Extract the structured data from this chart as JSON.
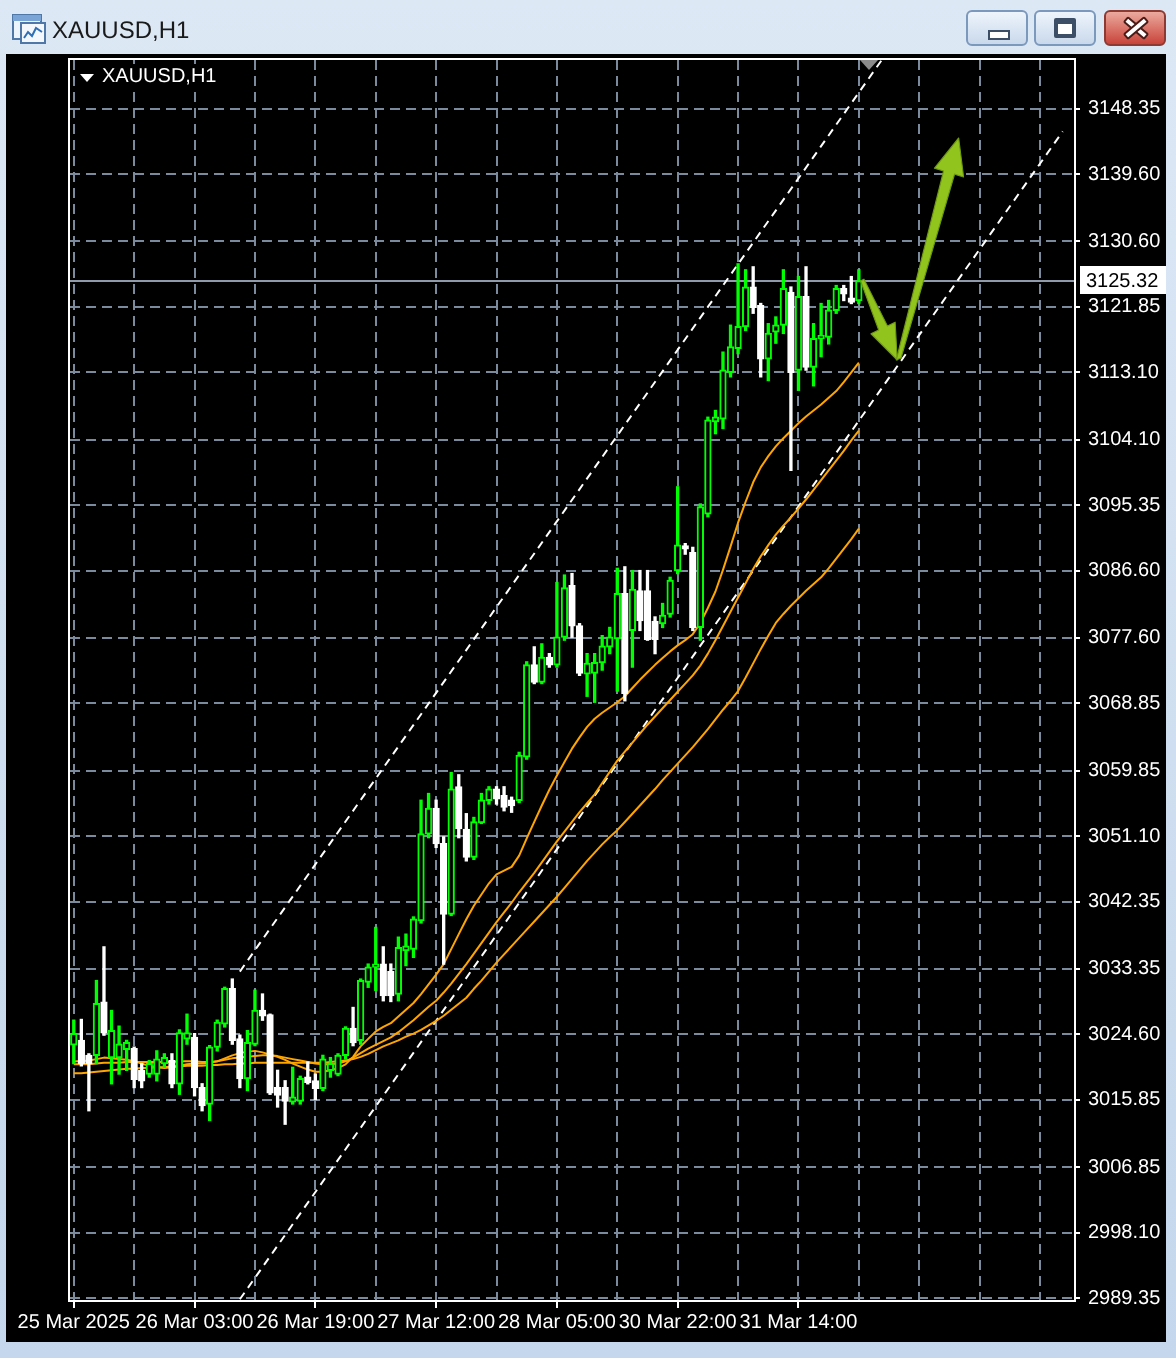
{
  "chart_data": {
    "type": "candlestick",
    "title": "XAUUSD,H1",
    "subtitle": "XAUUSD,H1",
    "categories": [
      "25 Mar 2025",
      null,
      null,
      null,
      null,
      null,
      null,
      null,
      null,
      null,
      null,
      null,
      null,
      null,
      null,
      null,
      "26 Mar 03:00",
      null,
      null,
      null,
      null,
      null,
      null,
      null,
      null,
      null,
      null,
      null,
      null,
      null,
      null,
      null,
      "26 Mar 19:00",
      null,
      null,
      null,
      null,
      null,
      null,
      null,
      null,
      null,
      null,
      null,
      null,
      null,
      null,
      null,
      "27 Mar 12:00",
      null,
      null,
      null,
      null,
      null,
      null,
      null,
      null,
      null,
      null,
      null,
      null,
      null,
      null,
      null,
      "28 Mar 05:00",
      null,
      null,
      null,
      null,
      null,
      null,
      null,
      null,
      null,
      null,
      null,
      null,
      null,
      null,
      null,
      "30 Mar 22:00",
      null,
      null,
      null,
      null,
      null,
      null,
      null,
      null,
      null,
      null,
      null,
      null,
      null,
      null,
      null,
      "31 Mar 14:00",
      null,
      null,
      null,
      null,
      null,
      null,
      null,
      null,
      null,
      null,
      null,
      null,
      null,
      null,
      null,
      null,
      null,
      null,
      null,
      null,
      null,
      null,
      null,
      null,
      null,
      null,
      null,
      null,
      null,
      null,
      null,
      null,
      null,
      null,
      null,
      null
    ],
    "ohlc": [
      [
        3023.2,
        3026.5,
        3020.7,
        3024.7
      ],
      [
        3023.8,
        3026.6,
        3020.4,
        3020.7
      ],
      [
        3021.8,
        3022.0,
        3014.4,
        3020.7
      ],
      [
        3021.8,
        3031.8,
        3020.7,
        3028.7
      ],
      [
        3028.9,
        3036.3,
        3024.5,
        3024.8
      ],
      [
        3021.5,
        3027.8,
        3018.0,
        3025.1
      ],
      [
        3021.5,
        3025.7,
        3019.3,
        3023.3
      ],
      [
        3022.6,
        3023.8,
        3019.8,
        3023.5
      ],
      [
        3022.7,
        3022.9,
        3017.5,
        3018.6
      ],
      [
        3019.8,
        3020.7,
        3017.5,
        3018.4
      ],
      [
        3019.3,
        3021.1,
        3018.9,
        3020.7
      ],
      [
        3019.3,
        3022.4,
        3018.4,
        3021.3
      ],
      [
        3020.7,
        3022.0,
        3020.2,
        3021.5
      ],
      [
        3021.1,
        3022.0,
        3017.5,
        3018.0
      ],
      [
        3018.0,
        3025.2,
        3016.6,
        3024.8
      ],
      [
        3024.0,
        3027.3,
        3023.3,
        3024.8
      ],
      [
        3024.2,
        3024.7,
        3016.4,
        3017.5
      ],
      [
        3017.5,
        3018.0,
        3014.4,
        3015.1
      ],
      [
        3015.3,
        3023.1,
        3013.1,
        3022.9
      ],
      [
        3022.9,
        3026.5,
        3022.4,
        3026.2
      ],
      [
        3026.0,
        3030.9,
        3025.6,
        3030.7
      ],
      [
        3030.7,
        3032.0,
        3023.3,
        3023.8
      ],
      [
        3024.0,
        3024.5,
        3017.5,
        3018.7
      ],
      [
        3018.7,
        3025.1,
        3017.1,
        3023.5
      ],
      [
        3023.3,
        3030.5,
        3023.1,
        3027.8
      ],
      [
        3027.8,
        3030.0,
        3026.5,
        3027.1
      ],
      [
        3027.2,
        3027.3,
        3016.6,
        3016.8
      ],
      [
        3017.5,
        3019.8,
        3014.9,
        3016.5
      ],
      [
        3017.5,
        3018.4,
        3012.6,
        3015.7
      ],
      [
        3015.6,
        3020.2,
        3015.3,
        3016.2
      ],
      [
        3015.7,
        3019.0,
        3015.3,
        3018.7
      ],
      [
        3018.9,
        3020.9,
        3018.0,
        3018.2
      ],
      [
        3018.4,
        3019.3,
        3015.9,
        3017.4
      ],
      [
        3017.4,
        3021.8,
        3017.1,
        3021.3
      ],
      [
        3019.8,
        3021.5,
        3018.9,
        3020.7
      ],
      [
        3019.3,
        3022.0,
        3019.1,
        3021.8
      ],
      [
        3021.8,
        3025.6,
        3021.3,
        3025.4
      ],
      [
        3025.4,
        3028.2,
        3023.1,
        3023.5
      ],
      [
        3023.8,
        3032.0,
        3023.3,
        3031.8
      ],
      [
        3031.6,
        3034.0,
        3030.9,
        3033.6
      ],
      [
        3033.6,
        3038.9,
        3030.5,
        3034.0
      ],
      [
        3034.0,
        3036.3,
        3029.1,
        3029.8
      ],
      [
        3033.0,
        3034.0,
        3029.0,
        3029.8
      ],
      [
        3030.0,
        3037.6,
        3029.1,
        3036.2
      ],
      [
        3035.8,
        3038.0,
        3033.8,
        3036.4
      ],
      [
        3036.0,
        3040.3,
        3034.9,
        3040.0
      ],
      [
        3039.8,
        3055.9,
        3039.5,
        3051.4
      ],
      [
        3051.4,
        3056.8,
        3050.9,
        3054.8
      ],
      [
        3054.8,
        3055.9,
        3049.6,
        3050.1
      ],
      [
        3050.1,
        3051.0,
        3034.0,
        3040.7
      ],
      [
        3040.7,
        3059.6,
        3040.5,
        3057.4
      ],
      [
        3057.7,
        3059.3,
        3050.9,
        3052.1
      ],
      [
        3052.0,
        3054.1,
        3047.8,
        3048.3
      ],
      [
        3048.3,
        3053.6,
        3048.0,
        3053.0
      ],
      [
        3052.9,
        3056.8,
        3052.8,
        3055.9
      ],
      [
        3055.9,
        3057.7,
        3055.4,
        3057.4
      ],
      [
        3057.4,
        3057.7,
        3055.4,
        3056.1
      ],
      [
        3056.5,
        3057.7,
        3054.5,
        3055.0
      ],
      [
        3055.9,
        3056.3,
        3054.3,
        3055.2
      ],
      [
        3055.9,
        3062.3,
        3055.6,
        3061.9
      ],
      [
        3061.7,
        3074.4,
        3061.4,
        3074.0
      ],
      [
        3074.0,
        3076.4,
        3071.5,
        3071.7
      ],
      [
        3071.7,
        3076.8,
        3071.5,
        3075.0
      ],
      [
        3075.0,
        3075.5,
        3073.7,
        3074.0
      ],
      [
        3074.0,
        3085.0,
        3073.7,
        3077.7
      ],
      [
        3077.7,
        3086.0,
        3077.3,
        3084.3
      ],
      [
        3084.6,
        3086.2,
        3077.7,
        3079.2
      ],
      [
        3079.2,
        3079.5,
        3072.6,
        3072.9
      ],
      [
        3072.8,
        3075.5,
        3069.8,
        3074.2
      ],
      [
        3072.9,
        3075.5,
        3069.0,
        3074.3
      ],
      [
        3074.3,
        3077.9,
        3073.3,
        3076.5
      ],
      [
        3076.4,
        3079.0,
        3075.5,
        3077.7
      ],
      [
        3077.5,
        3086.9,
        3070.5,
        3083.5
      ],
      [
        3083.5,
        3087.1,
        3069.2,
        3070.2
      ],
      [
        3078.6,
        3086.6,
        3073.7,
        3084.1
      ],
      [
        3083.9,
        3086.6,
        3078.6,
        3079.9
      ],
      [
        3083.9,
        3086.6,
        3077.3,
        3077.4
      ],
      [
        3079.8,
        3080.4,
        3075.5,
        3077.4
      ],
      [
        3079.5,
        3082.2,
        3079.0,
        3080.6
      ],
      [
        3080.8,
        3085.7,
        3080.4,
        3085.3
      ],
      [
        3086.6,
        3097.8,
        3086.2,
        3090.0
      ],
      [
        3089.9,
        3090.2,
        3088.8,
        3089.5
      ],
      [
        3089.0,
        3089.7,
        3078.6,
        3079.0
      ],
      [
        3079.0,
        3095.5,
        3077.3,
        3095.1
      ],
      [
        3094.2,
        3107.1,
        3093.8,
        3106.7
      ],
      [
        3106.5,
        3108.0,
        3104.9,
        3107.1
      ],
      [
        3106.9,
        3115.8,
        3105.6,
        3113.4
      ],
      [
        3113.1,
        3119.4,
        3112.5,
        3116.5
      ],
      [
        3116.3,
        3127.6,
        3115.6,
        3119.2
      ],
      [
        3119.2,
        3126.8,
        3118.7,
        3124.5
      ],
      [
        3124.5,
        3127.2,
        3121.0,
        3121.8
      ],
      [
        3122.0,
        3122.3,
        3112.5,
        3114.9
      ],
      [
        3114.9,
        3119.6,
        3112.0,
        3118.3
      ],
      [
        3118.5,
        3120.5,
        3117.0,
        3119.4
      ],
      [
        3119.4,
        3126.8,
        3118.3,
        3124.3
      ],
      [
        3123.8,
        3124.5,
        3100.0,
        3113.1
      ],
      [
        3113.4,
        3125.9,
        3110.7,
        3123.2
      ],
      [
        3123.2,
        3127.2,
        3113.4,
        3113.8
      ],
      [
        3113.8,
        3119.6,
        3111.3,
        3117.6
      ],
      [
        3117.6,
        3122.3,
        3115.2,
        3118.0
      ],
      [
        3117.8,
        3122.7,
        3116.9,
        3121.4
      ],
      [
        3121.4,
        3124.7,
        3121.0,
        3124.3
      ],
      [
        3124.3,
        3124.7,
        3122.7,
        3123.6
      ],
      [
        3123.0,
        3125.9,
        3122.3,
        3122.5
      ],
      [
        3122.7,
        3126.8,
        3122.3,
        3125.32
      ],
      null,
      null,
      null,
      null,
      null,
      null,
      null,
      null,
      null,
      null,
      null,
      null,
      null,
      null,
      null,
      null,
      null,
      null,
      null,
      null,
      null,
      null,
      null,
      null,
      null,
      null,
      null,
      null
    ],
    "colors": [
      "#00ff00",
      "#ffffff",
      "#ffffff",
      "#00ff00",
      "#ffffff",
      "#00ff00",
      "#00ff00",
      "#00ff00",
      "#ffffff",
      "#ffffff",
      "#00ff00",
      "#00ff00",
      "#00ff00",
      "#ffffff",
      "#00ff00",
      "#00ff00",
      "#ffffff",
      "#ffffff",
      "#00ff00",
      "#00ff00",
      "#00ff00",
      "#ffffff",
      "#ffffff",
      "#00ff00",
      "#00ff00",
      "#ffffff",
      "#ffffff",
      "#ffffff",
      "#ffffff",
      "#00ff00",
      "#00ff00",
      "#ffffff",
      "#ffffff",
      "#00ff00",
      "#00ff00",
      "#00ff00",
      "#00ff00",
      "#ffffff",
      "#00ff00",
      "#00ff00",
      "#00ff00",
      "#ffffff",
      "#ffffff",
      "#00ff00",
      "#00ff00",
      "#00ff00",
      "#00ff00",
      "#00ff00",
      "#ffffff",
      "#ffffff",
      "#00ff00",
      "#ffffff",
      "#ffffff",
      "#00ff00",
      "#00ff00",
      "#00ff00",
      "#ffffff",
      "#ffffff",
      "#ffffff",
      "#00ff00",
      "#00ff00",
      "#ffffff",
      "#00ff00",
      "#ffffff",
      "#00ff00",
      "#00ff00",
      "#ffffff",
      "#ffffff",
      "#00ff00",
      "#00ff00",
      "#00ff00",
      "#00ff00",
      "#00ff00",
      "#ffffff",
      "#00ff00",
      "#ffffff",
      "#ffffff",
      "#ffffff",
      "#00ff00",
      "#00ff00",
      "#00ff00",
      "#ffffff",
      "#ffffff",
      "#00ff00",
      "#00ff00",
      "#00ff00",
      "#00ff00",
      "#00ff00",
      "#00ff00",
      "#00ff00",
      "#ffffff",
      "#ffffff",
      "#00ff00",
      "#00ff00",
      "#00ff00",
      "#ffffff",
      "#00ff00",
      "#ffffff",
      "#00ff00",
      "#00ff00",
      "#00ff00",
      "#00ff00",
      "#ffffff",
      "#ffffff",
      "#00ff00",
      null,
      null,
      null,
      null,
      null,
      null,
      null,
      null,
      null,
      null,
      null,
      null,
      null,
      null,
      null,
      null,
      null,
      null,
      null,
      null,
      null,
      null,
      null,
      null,
      null,
      null,
      null,
      null
    ],
    "series": [
      {
        "type": "line",
        "color": "#ffa500",
        "values": [
          3021.0,
          3021.0,
          3021.1,
          3021.3,
          3021.5,
          3021.4,
          3021.3,
          3021.2,
          3021.0,
          3020.7,
          3020.4,
          3020.2,
          3020.1,
          3020.2,
          3020.4,
          3020.6,
          3020.7,
          3020.7,
          3020.8,
          3021.0,
          3021.4,
          3021.8,
          3022.1,
          3022.3,
          3022.4,
          3022.2,
          3021.9,
          3021.6,
          3021.2,
          3020.7,
          3020.3,
          3019.9,
          3019.6,
          3019.6,
          3019.8,
          3020.1,
          3020.6,
          3021.6,
          3023.0,
          3024.0,
          3025.0,
          3025.6,
          3026.1,
          3027.0,
          3027.9,
          3028.8,
          3030.0,
          3031.3,
          3032.6,
          3034.0,
          3036.0,
          3038.0,
          3040.0,
          3041.8,
          3043.3,
          3044.8,
          3046.0,
          3046.5,
          3047.0,
          3048.5,
          3050.8,
          3053.0,
          3055.2,
          3057.3,
          3059.2,
          3061.0,
          3062.8,
          3064.3,
          3065.7,
          3066.8,
          3067.6,
          3068.3,
          3069.0,
          3069.8,
          3070.9,
          3072.0,
          3073.0,
          3074.0,
          3074.9,
          3075.8,
          3076.6,
          3077.3,
          3078.1,
          3079.6,
          3081.6,
          3083.8,
          3086.7,
          3089.8,
          3093.0,
          3095.8,
          3098.4,
          3100.4,
          3101.9,
          3103.2,
          3104.3,
          3105.3,
          3106.3,
          3107.2,
          3108.0,
          3108.8,
          3109.7,
          3110.6,
          3111.8,
          3113.1,
          3114.4,
          null,
          null,
          null,
          null,
          null,
          null,
          null,
          null,
          null,
          null,
          null,
          null,
          null,
          null,
          null,
          null,
          null,
          null,
          null,
          null,
          null,
          null,
          null,
          null,
          null,
          null,
          null,
          null
        ]
      },
      {
        "type": "line",
        "color": "#ffa500",
        "values": [
          3020.6,
          3020.6,
          3020.6,
          3020.7,
          3020.8,
          3020.8,
          3020.8,
          3020.9,
          3020.9,
          3020.9,
          3020.9,
          3020.9,
          3020.9,
          3020.9,
          3021.0,
          3021.0,
          3021.0,
          3020.9,
          3020.9,
          3021.0,
          3021.2,
          3021.4,
          3021.5,
          3021.6,
          3021.7,
          3021.8,
          3021.8,
          3021.7,
          3021.5,
          3021.3,
          3021.1,
          3020.9,
          3020.7,
          3020.6,
          3020.6,
          3020.7,
          3021.0,
          3021.5,
          3022.1,
          3022.7,
          3023.2,
          3023.7,
          3024.2,
          3024.9,
          3025.7,
          3026.5,
          3027.4,
          3028.3,
          3029.1,
          3030.2,
          3031.4,
          3032.7,
          3034.0,
          3035.4,
          3036.8,
          3038.2,
          3039.6,
          3040.9,
          3042.2,
          3043.6,
          3044.9,
          3046.2,
          3047.6,
          3049.0,
          3050.4,
          3051.7,
          3053.0,
          3054.3,
          3055.5,
          3056.7,
          3058.2,
          3059.7,
          3061.2,
          3062.4,
          3063.6,
          3064.8,
          3066.0,
          3067.1,
          3068.2,
          3069.3,
          3070.4,
          3071.5,
          3072.6,
          3073.9,
          3075.5,
          3077.3,
          3079.2,
          3081.1,
          3083.0,
          3084.9,
          3086.8,
          3088.5,
          3090.0,
          3091.4,
          3092.6,
          3093.7,
          3094.9,
          3096.1,
          3097.4,
          3098.7,
          3100.0,
          3101.3,
          3102.6,
          3104.0,
          3105.3,
          null,
          null,
          null,
          null,
          null,
          null,
          null,
          null,
          null,
          null,
          null,
          null,
          null,
          null,
          null,
          null,
          null,
          null,
          null,
          null,
          null,
          null,
          null,
          null,
          null,
          null,
          null,
          null
        ]
      },
      {
        "type": "line",
        "color": "#ffa500",
        "values": [
          3019.4,
          3019.4,
          3019.5,
          3019.6,
          3019.7,
          3019.8,
          3019.9,
          3020.0,
          3020.0,
          3020.1,
          3020.1,
          3020.2,
          3020.2,
          3020.3,
          3020.3,
          3020.4,
          3020.4,
          3020.4,
          3020.5,
          3020.5,
          3020.6,
          3020.6,
          3020.7,
          3020.7,
          3020.8,
          3020.8,
          3020.8,
          3020.8,
          3020.8,
          3020.8,
          3020.8,
          3020.8,
          3020.8,
          3020.8,
          3020.9,
          3021.0,
          3021.1,
          3021.3,
          3021.6,
          3022.0,
          3022.5,
          3023.0,
          3023.4,
          3023.8,
          3024.3,
          3024.7,
          3025.2,
          3025.8,
          3026.4,
          3027.1,
          3027.9,
          3028.7,
          3029.5,
          3030.7,
          3031.8,
          3033.0,
          3034.2,
          3035.3,
          3036.4,
          3037.5,
          3038.6,
          3039.7,
          3040.8,
          3041.9,
          3043.0,
          3044.2,
          3045.4,
          3046.6,
          3047.8,
          3048.9,
          3050.0,
          3051.0,
          3051.9,
          3053.0,
          3054.1,
          3055.2,
          3056.3,
          3057.4,
          3058.6,
          3059.7,
          3060.8,
          3061.9,
          3063.0,
          3064.2,
          3065.4,
          3066.7,
          3068.0,
          3069.2,
          3070.5,
          3072.3,
          3074.2,
          3076.1,
          3077.9,
          3079.6,
          3080.8,
          3081.9,
          3082.9,
          3083.9,
          3084.8,
          3085.7,
          3086.9,
          3088.2,
          3089.5,
          3090.8,
          3092.2,
          null,
          null,
          null,
          null,
          null,
          null,
          null,
          null,
          null,
          null,
          null,
          null,
          null,
          null,
          null,
          null,
          null,
          null,
          null,
          null,
          null,
          null,
          null,
          null,
          null,
          null,
          null,
          null
        ]
      },
      {
        "type": "line",
        "color": "#ffffff",
        "line_style": "dashed",
        "values": [
          null,
          null,
          null,
          null,
          null,
          null,
          null,
          null,
          null,
          null,
          null,
          null,
          null,
          null,
          null,
          null,
          null,
          null,
          null,
          null,
          null,
          null,
          3033.0,
          null,
          null,
          null,
          null,
          null,
          null,
          null,
          null,
          null,
          null,
          null,
          null,
          null,
          null,
          null,
          null,
          null,
          null,
          null,
          null,
          null,
          null,
          null,
          null,
          null,
          null,
          null,
          null,
          null,
          null,
          null,
          null,
          null,
          null,
          null,
          null,
          null,
          null,
          null,
          null,
          null,
          null,
          null,
          null,
          null,
          null,
          null,
          null,
          null,
          null,
          null,
          null,
          null,
          null,
          null,
          null,
          null,
          null,
          null,
          null,
          null,
          null,
          null,
          null,
          null,
          null,
          null,
          null,
          null,
          null,
          null,
          null,
          null,
          null,
          null,
          null,
          null,
          null,
          null,
          null,
          null,
          null,
          null,
          null,
          3154.8,
          null,
          null,
          null,
          null,
          null,
          null,
          null,
          null,
          null,
          null,
          null,
          null,
          null,
          null,
          null,
          null,
          null,
          null,
          null,
          null,
          null,
          null,
          null,
          null,
          null
        ]
      },
      {
        "type": "line",
        "color": "#ffffff",
        "line_style": "dashed",
        "values": [
          null,
          null,
          null,
          null,
          null,
          null,
          null,
          null,
          null,
          null,
          null,
          null,
          null,
          null,
          null,
          null,
          null,
          null,
          null,
          null,
          null,
          null,
          2989.2,
          null,
          null,
          null,
          null,
          null,
          null,
          null,
          null,
          null,
          null,
          null,
          null,
          null,
          null,
          null,
          null,
          null,
          null,
          null,
          null,
          null,
          null,
          null,
          null,
          null,
          null,
          null,
          null,
          null,
          null,
          null,
          null,
          null,
          null,
          null,
          null,
          null,
          null,
          null,
          null,
          null,
          null,
          null,
          null,
          null,
          null,
          null,
          null,
          null,
          null,
          null,
          null,
          null,
          null,
          null,
          null,
          null,
          null,
          null,
          null,
          null,
          null,
          null,
          null,
          null,
          null,
          null,
          null,
          null,
          null,
          null,
          null,
          null,
          null,
          null,
          null,
          null,
          null,
          null,
          null,
          null,
          null,
          null,
          null,
          null,
          null,
          null,
          null,
          null,
          null,
          null,
          null,
          null,
          null,
          null,
          null,
          null,
          null,
          null,
          null,
          null,
          null,
          null,
          null,
          null,
          null,
          null,
          null,
          3145.3,
          null
        ]
      }
    ],
    "ylim": [
      2989.1,
      3154.85
    ],
    "yticks": [
      2989.35,
      {
        "value": 2998.1,
        "label": "2998.10"
      },
      3006.85,
      3015.85,
      {
        "value": 3024.6,
        "label": "3024.60"
      },
      3033.35,
      3042.35,
      {
        "value": 3051.1,
        "label": "3051.10"
      },
      3059.85,
      3068.85,
      {
        "value": 3077.6,
        "label": "3077.60"
      },
      {
        "value": 3086.6,
        "label": "3086.60"
      },
      3095.35,
      {
        "value": 3104.1,
        "label": "3104.10"
      },
      {
        "value": 3113.1,
        "label": "3113.10"
      },
      3121.85,
      {
        "value": 3130.6,
        "label": "3130.60"
      },
      {
        "value": 3139.6,
        "label": "3139.60"
      },
      3148.35
    ],
    "ref_lines": [
      {
        "axis": "y",
        "value": 3125.32,
        "label": "3125.32",
        "color": "#8f9bab"
      }
    ],
    "grid": true
  }
}
